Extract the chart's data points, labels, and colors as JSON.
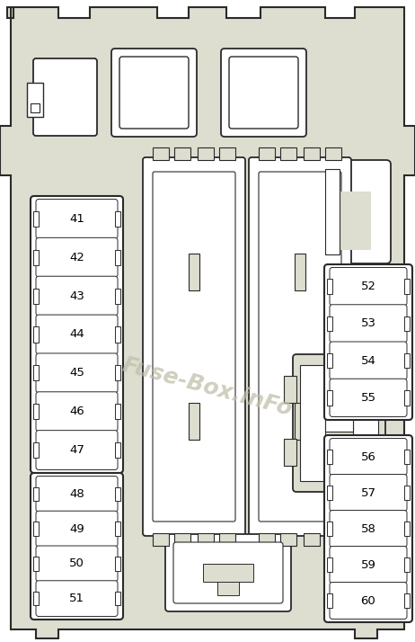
{
  "bg_color": "#e8e8d8",
  "inner_bg": "#ddddd0",
  "white": "#ffffff",
  "outline_color": "#2a2a2a",
  "watermark_text": "Fuse-Box.inFo",
  "watermark_color": "#c0bfaa",
  "fig_w": 4.62,
  "fig_h": 7.14,
  "dpi": 100
}
